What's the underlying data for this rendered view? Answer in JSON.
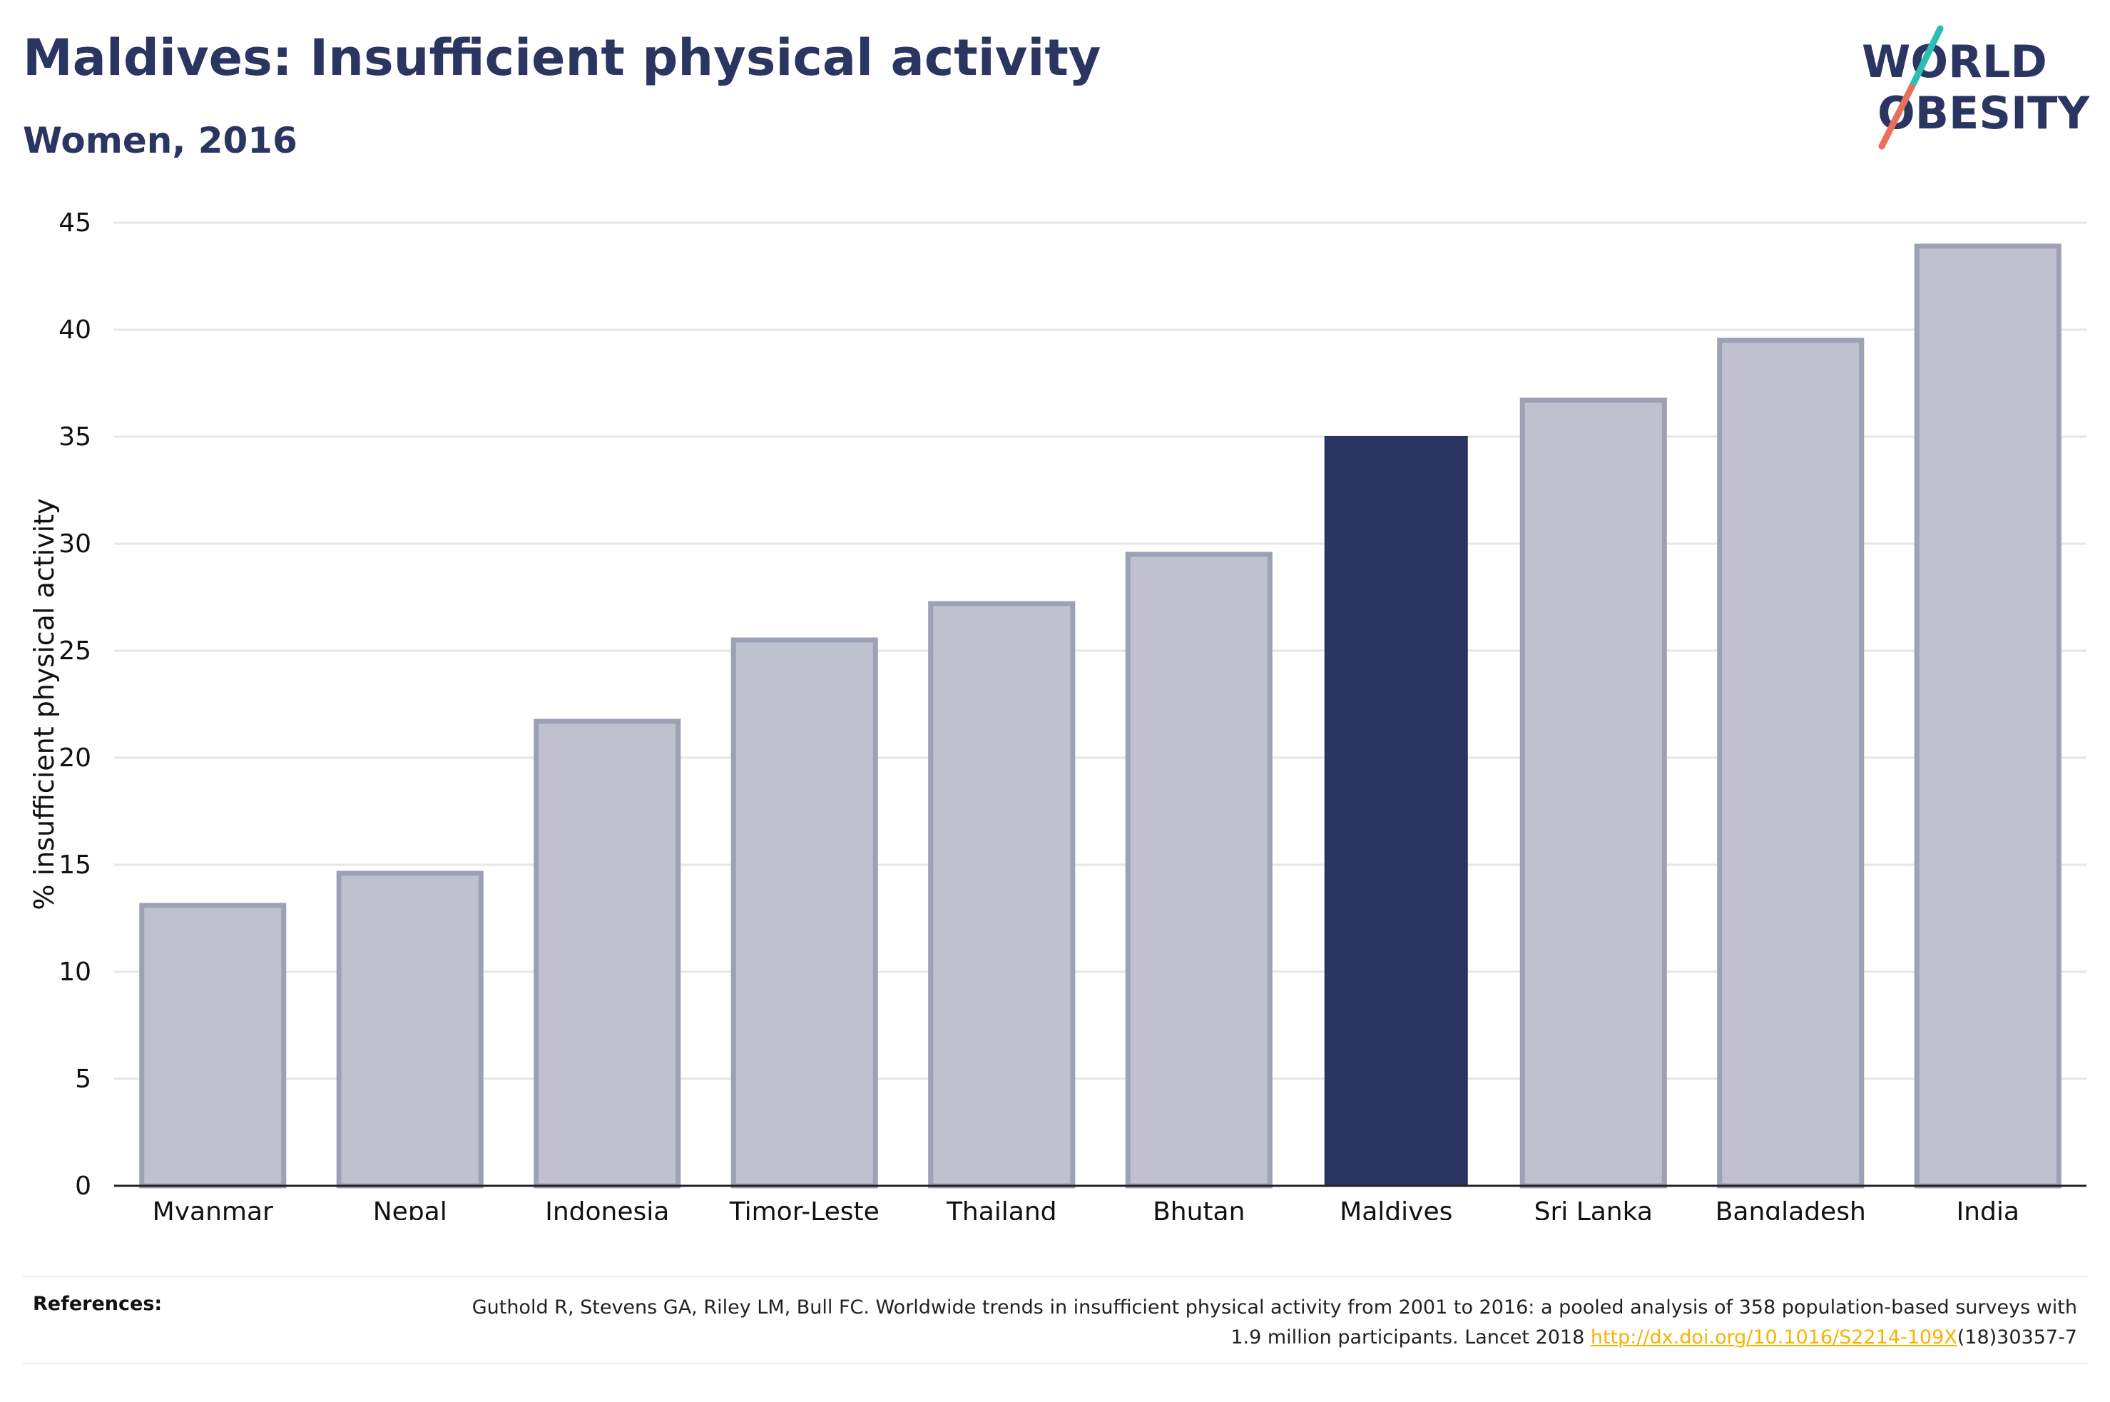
{
  "header": {
    "title": "Maldives: Insufficient physical activity",
    "subtitle": "Women, 2016"
  },
  "logo": {
    "line1": "WORLD",
    "line2": "OBESITY",
    "slash_colors": [
      "#2bbfb3",
      "#e8705c"
    ]
  },
  "chart_data": {
    "type": "bar",
    "categories": [
      "Myanmar",
      "Nepal",
      "Indonesia",
      "Timor-Leste",
      "Thailand",
      "Bhutan",
      "Maldives",
      "Sri Lanka",
      "Bangladesh",
      "India"
    ],
    "values": [
      13.1,
      14.6,
      21.7,
      25.5,
      27.2,
      29.5,
      35.0,
      36.7,
      39.5,
      43.9
    ],
    "highlight": "Maldives",
    "ylabel": "% insufficient physical activity",
    "xlabel": "",
    "ylim": [
      0,
      45
    ],
    "yticks": [
      0,
      5,
      10,
      15,
      20,
      25,
      30,
      35,
      40,
      45
    ],
    "grid": true,
    "colors": {
      "bar": "#bfc2ce",
      "bar_border": "#9da1b6",
      "highlight": "#2b3561"
    }
  },
  "references": {
    "label": "References:",
    "text_before": "Guthold R, Stevens GA, Riley LM, Bull FC. Worldwide trends in insufficient physical activity from 2001 to 2016: a pooled analysis of 358 population-based surveys with 1.9 million participants. Lancet 2018 ",
    "link": "http://dx.doi.org/10.1016/S2214-109X",
    "text_after": "(18)30357-7"
  }
}
